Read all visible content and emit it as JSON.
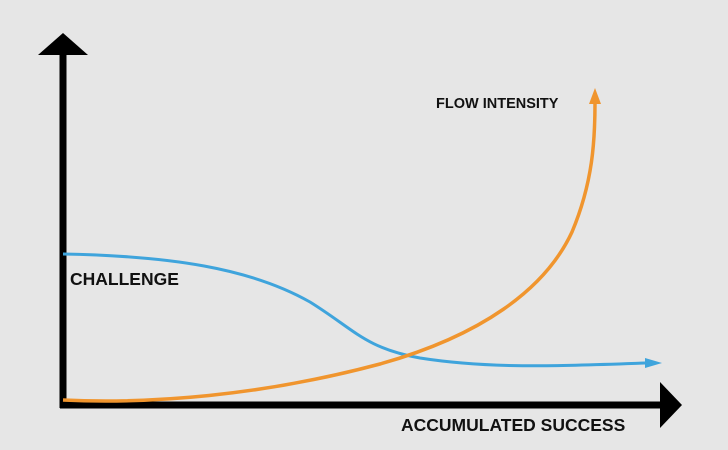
{
  "chart_data": {
    "type": "line",
    "xlabel": "ACCUMULATED SUCCESS",
    "ylabel": "",
    "series": [
      {
        "name": "CHALLENGE",
        "color": "#3fa4dc"
      },
      {
        "name": "FLOW INTENSITY",
        "color": "#f0952e"
      }
    ]
  },
  "colors": {
    "background": "#e6e6e6",
    "axes": "#000000"
  }
}
